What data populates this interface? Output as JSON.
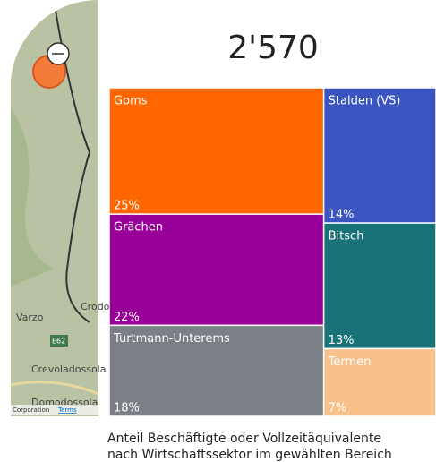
{
  "kpi": "2'570",
  "map": {
    "labels": [
      "Crodo",
      "Varzo",
      "E62",
      "Crevoladossola",
      "Domodossola"
    ],
    "attribution": [
      "Corporation",
      "Terms"
    ]
  },
  "chart_data": {
    "type": "treemap",
    "categories": [
      "Goms",
      "Grächen",
      "Turtmann-Unterems",
      "Stalden (VS)",
      "Bitsch",
      "Termen"
    ],
    "values": [
      25,
      22,
      18,
      14,
      13,
      7
    ],
    "value_labels": [
      "25%",
      "22%",
      "18%",
      "14%",
      "13%",
      "7%"
    ],
    "colors": [
      "#ff6600",
      "#990099",
      "#7b8087",
      "#3a55c0",
      "#197278",
      "#f8c08a"
    ]
  },
  "caption": [
    "Anteil Beschäftigte oder Vollzeitäquivalente",
    "nach Wirtschaftssektor im gewählten Bereich"
  ]
}
